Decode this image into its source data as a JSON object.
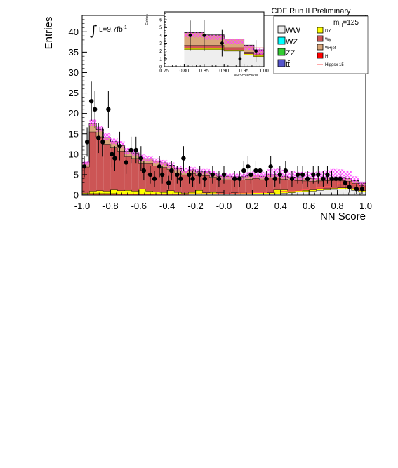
{
  "header": {
    "title": "CDF Run II Preliminary"
  },
  "annotations": {
    "mass_label": "m_H=125",
    "lumi_label": "L=9.7fb",
    "lumi_exponent": "-1"
  },
  "legend": {
    "left": [
      {
        "label": "WW",
        "color": "#eeeeee"
      },
      {
        "label": "WZ",
        "color": "#00ffff"
      },
      {
        "label": "ZZ",
        "color": "#33cc33"
      },
      {
        "label": "tt̄",
        "color": "#5555cc"
      }
    ],
    "right": [
      {
        "label": "DY",
        "color": "#ffff00"
      },
      {
        "label": "Wγ",
        "color": "#cc5555"
      },
      {
        "label": "W+jet",
        "color": "#d9a77c"
      },
      {
        "label": "H",
        "color": "#ff0000"
      },
      {
        "label": "Higgsx 15",
        "color": "#ff5555"
      }
    ]
  },
  "chart_data": [
    {
      "type": "bar",
      "stacked": true,
      "title": "CDF Run II Preliminary",
      "xlabel": "NN Score",
      "ylabel": "Entries",
      "xlim": [
        -1.0,
        1.0
      ],
      "ylim": [
        0,
        44
      ],
      "xticks": [
        "-1.0",
        "-0.8",
        "-0.6",
        "-0.4",
        "-0.2",
        "-0.0",
        "0.2",
        "0.4",
        "0.6",
        "0.8",
        "1.0"
      ],
      "yticks": [
        "0",
        "5",
        "10",
        "15",
        "20",
        "25",
        "30",
        "35",
        "40"
      ],
      "bin_edges": [
        -1.0,
        -0.95,
        -0.9,
        -0.85,
        -0.8,
        -0.75,
        -0.7,
        -0.65,
        -0.6,
        -0.55,
        -0.5,
        -0.45,
        -0.4,
        -0.35,
        -0.3,
        -0.25,
        -0.2,
        -0.15,
        -0.1,
        -0.05,
        0.0,
        0.05,
        0.1,
        0.15,
        0.2,
        0.25,
        0.3,
        0.35,
        0.4,
        0.45,
        0.5,
        0.55,
        0.6,
        0.65,
        0.7,
        0.75,
        0.8,
        0.85,
        0.9,
        0.95,
        1.0
      ],
      "stack": [
        {
          "name": "WW",
          "color": "#eeeeee",
          "values": [
            0.2,
            0.4,
            0.4,
            0.4,
            0.4,
            0.3,
            0.3,
            0.3,
            0.3,
            0.3,
            0.3,
            0.3,
            0.3,
            0.3,
            0.3,
            0.3,
            0.3,
            0.3,
            0.3,
            0.3,
            0.3,
            0.3,
            0.3,
            0.3,
            0.3,
            0.3,
            0.3,
            0.3,
            0.5,
            0.6,
            0.8,
            0.9,
            1.0,
            1.2,
            1.3,
            1.4,
            1.5,
            1.5,
            1.2,
            0.8
          ]
        },
        {
          "name": "DY",
          "color": "#ffff00",
          "values": [
            0.3,
            0.6,
            0.7,
            0.6,
            0.9,
            0.8,
            0.9,
            0.7,
            1.2,
            0.7,
            0.5,
            0.4,
            0.8,
            0.4,
            0.2,
            0.4,
            0.9,
            0.3,
            0.4,
            0.3,
            0.2,
            0.3,
            0.3,
            0.2,
            0.3,
            0.3,
            0.3,
            1.0,
            0.8,
            0.4,
            0.4,
            0.3,
            0.3,
            0.3,
            0.3,
            0.3,
            0.3,
            0.3,
            0.3,
            0.3
          ]
        },
        {
          "name": "Wγ",
          "color": "#cc5555",
          "values": [
            6.4,
            14.5,
            13.2,
            11.5,
            10.3,
            9.7,
            8.2,
            8.0,
            6.2,
            6.7,
            6.4,
            6.1,
            5.2,
            4.8,
            4.5,
            4.6,
            3.6,
            4.2,
            3.7,
            3.2,
            3.3,
            3.1,
            3.1,
            3.4,
            3.5,
            3.2,
            3.6,
            2.9,
            2.6,
            2.7,
            2.4,
            2.3,
            2.1,
            2.0,
            2.0,
            1.9,
            1.8,
            1.6,
            1.4,
            1.3
          ]
        },
        {
          "name": "W+jet",
          "color": "#d9a77c",
          "values": [
            1.0,
            2.0,
            1.8,
            1.6,
            1.5,
            1.4,
            1.3,
            1.3,
            1.2,
            1.2,
            1.1,
            1.1,
            1.0,
            1.0,
            0.9,
            0.9,
            0.9,
            0.9,
            0.8,
            0.8,
            0.8,
            0.8,
            0.8,
            0.8,
            0.8,
            0.8,
            0.8,
            0.8,
            0.7,
            0.7,
            0.7,
            0.7,
            0.7,
            0.7,
            0.7,
            0.7,
            0.7,
            0.7,
            0.6,
            0.5
          ]
        }
      ],
      "signal_x15": {
        "name": "Higgsx 15",
        "color": "#ff5555",
        "values": [
          0.0,
          0.1,
          0.1,
          0.1,
          0.1,
          0.1,
          0.1,
          0.1,
          0.1,
          0.1,
          0.2,
          0.2,
          0.2,
          0.2,
          0.2,
          0.3,
          0.3,
          0.3,
          0.3,
          0.4,
          0.4,
          0.4,
          0.5,
          0.5,
          0.6,
          0.6,
          0.7,
          0.8,
          0.9,
          1.0,
          1.1,
          1.3,
          1.5,
          1.8,
          2.1,
          2.5,
          2.9,
          3.2,
          2.6,
          1.5
        ]
      },
      "total_uncertainty": {
        "color": "#ff44ff",
        "values": [
          8.3,
          18.5,
          16.9,
          15.1,
          14.0,
          13.2,
          11.5,
          11.0,
          9.9,
          9.6,
          9.0,
          8.6,
          8.0,
          7.2,
          6.6,
          6.9,
          6.4,
          6.4,
          5.9,
          5.4,
          5.5,
          5.3,
          5.3,
          5.6,
          6.0,
          5.7,
          6.3,
          6.5,
          6.2,
          6.0,
          5.7,
          5.7,
          5.6,
          5.8,
          6.1,
          6.4,
          6.3,
          5.9,
          4.6,
          3.3
        ]
      },
      "data_points": {
        "x": [
          -0.985,
          -0.965,
          -0.935,
          -0.91,
          -0.885,
          -0.855,
          -0.815,
          -0.79,
          -0.77,
          -0.735,
          -0.69,
          -0.655,
          -0.62,
          -0.585,
          -0.565,
          -0.52,
          -0.49,
          -0.455,
          -0.435,
          -0.39,
          -0.37,
          -0.33,
          -0.305,
          -0.285,
          -0.245,
          -0.22,
          -0.17,
          -0.135,
          -0.08,
          -0.035,
          0.0,
          0.075,
          0.11,
          0.14,
          0.17,
          0.19,
          0.225,
          0.255,
          0.3,
          0.33,
          0.36,
          0.395,
          0.435,
          0.48,
          0.52,
          0.555,
          0.59,
          0.63,
          0.665,
          0.7,
          0.73,
          0.76,
          0.79,
          0.82,
          0.855,
          0.885,
          0.935,
          0.975
        ],
        "y": [
          7,
          13,
          23,
          21,
          14,
          13,
          21,
          10,
          9,
          12,
          8,
          11,
          11,
          9,
          6,
          5,
          4,
          7,
          5,
          3,
          6,
          5,
          4,
          9,
          5,
          4,
          5,
          4,
          5,
          4,
          5,
          4,
          4,
          6,
          7,
          5,
          6,
          6,
          4,
          7,
          4,
          5,
          6,
          4,
          5,
          5,
          4,
          5,
          5,
          4,
          5,
          4,
          4,
          4,
          3,
          2,
          1.5,
          1.5
        ],
        "err": [
          2.6,
          3.6,
          4.8,
          4.6,
          3.7,
          3.6,
          4.6,
          3.2,
          3.0,
          3.5,
          2.8,
          3.3,
          3.3,
          3.0,
          2.4,
          2.2,
          2.0,
          2.6,
          2.2,
          1.7,
          2.4,
          2.2,
          2.0,
          3.0,
          2.2,
          2.0,
          2.2,
          2.0,
          2.2,
          2.0,
          2.2,
          2.0,
          2.0,
          2.4,
          2.6,
          2.2,
          2.4,
          2.4,
          2.0,
          2.6,
          2.0,
          2.2,
          2.4,
          2.0,
          2.2,
          2.2,
          2.0,
          2.2,
          2.2,
          2.0,
          2.2,
          2.0,
          2.0,
          2.0,
          1.7,
          1.4,
          1.2,
          1.2
        ]
      }
    },
    {
      "type": "bar",
      "stacked": true,
      "xlabel": "NN ScoreHWW",
      "ylabel": "Entries",
      "xlim": [
        0.75,
        1.0
      ],
      "ylim": [
        0,
        7
      ],
      "xticks": [
        "0.75",
        "0.80",
        "0.85",
        "0.90",
        "0.95",
        "1.00"
      ],
      "yticks": [
        "0",
        "1",
        "2",
        "3",
        "4",
        "5",
        "6"
      ],
      "bin_edges": [
        0.8,
        0.85,
        0.9,
        0.95,
        0.975,
        1.0
      ],
      "stack": [
        {
          "name": "WW",
          "color": "#eeeeee",
          "values": [
            2.2,
            2.2,
            2.0,
            1.5,
            1.3
          ]
        },
        {
          "name": "DY",
          "color": "#ffff00",
          "values": [
            0.15,
            0.15,
            0.15,
            0.15,
            0.15
          ]
        },
        {
          "name": "Wγ",
          "color": "#cc5555",
          "values": [
            0.4,
            0.4,
            0.3,
            0.2,
            0.2
          ]
        },
        {
          "name": "W+jet",
          "color": "#d9a77c",
          "values": [
            1.6,
            1.3,
            1.1,
            0.9,
            0.5
          ]
        }
      ],
      "signal_x15": {
        "name": "Higgsx 15",
        "color": "#ff5555",
        "values": [
          2.4,
          2.4,
          2.4,
          2.4,
          2.4
        ]
      },
      "total_uncertainty": {
        "color": "#ff44ff",
        "values": [
          3.6,
          3.4,
          3.0,
          2.6,
          2.3
        ]
      },
      "data_points": {
        "x": [
          0.815,
          0.85,
          0.895,
          0.94,
          0.98
        ],
        "y": [
          4,
          4,
          3,
          1,
          2
        ],
        "err": [
          1.9,
          2.0,
          1.7,
          1.0,
          1.4
        ]
      }
    }
  ]
}
